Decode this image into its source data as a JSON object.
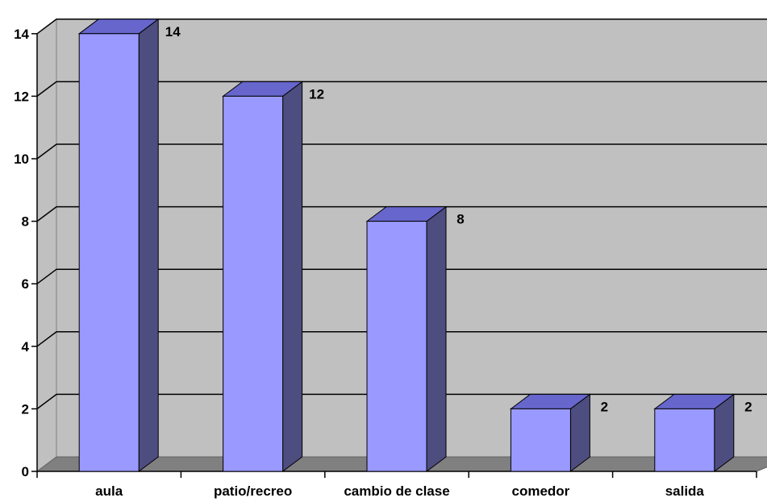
{
  "chart_data": {
    "type": "bar",
    "style": "3d-column",
    "categories": [
      "aula",
      "patio/recreo",
      "cambio de clase",
      "comedor",
      "salida"
    ],
    "values": [
      14,
      12,
      8,
      2,
      2
    ],
    "data_labels": [
      "14",
      "12",
      "8",
      "2",
      "2"
    ],
    "yticks": [
      "0",
      "2",
      "4",
      "6",
      "8",
      "10",
      "12",
      "14"
    ],
    "ylim": [
      0,
      14
    ],
    "grid": true,
    "legend": "none",
    "colors": {
      "bar_front": "#9999ff",
      "bar_side": "#4d4d80",
      "bar_top": "#6666cc",
      "wall": "#c0c0c0",
      "floor": "#808080",
      "gridline": "#000000"
    }
  }
}
